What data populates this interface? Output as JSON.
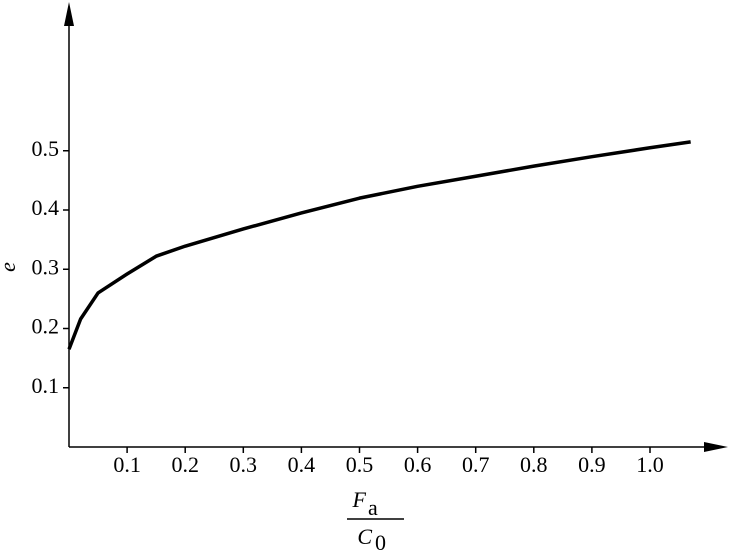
{
  "chart_data": {
    "type": "line",
    "ylabel": "e",
    "xlabel": {
      "numerator": {
        "base": "F",
        "sub": "a"
      },
      "denominator": {
        "base": "C",
        "sub": "0"
      }
    },
    "x": [
      0,
      0.02,
      0.05,
      0.1,
      0.15,
      0.2,
      0.3,
      0.4,
      0.5,
      0.6,
      0.7,
      0.8,
      0.9,
      1.0,
      1.07
    ],
    "series": [
      {
        "color": "#000000",
        "values": [
          0.165,
          0.216,
          0.26,
          0.292,
          0.322,
          0.339,
          0.368,
          0.395,
          0.42,
          0.44,
          0.457,
          0.474,
          0.49,
          0.505,
          0.515
        ]
      }
    ],
    "xlim": [
      0,
      1.13
    ],
    "ylim": [
      0,
      0.745
    ],
    "xticks": [
      0.1,
      0.2,
      0.3,
      0.4,
      0.5,
      0.6,
      0.7,
      0.8,
      0.9,
      {
        "value": 1.0,
        "label": "1.0"
      }
    ],
    "yticks": [
      0.1,
      0.2,
      0.3,
      0.4,
      0.5
    ],
    "grid": false
  }
}
